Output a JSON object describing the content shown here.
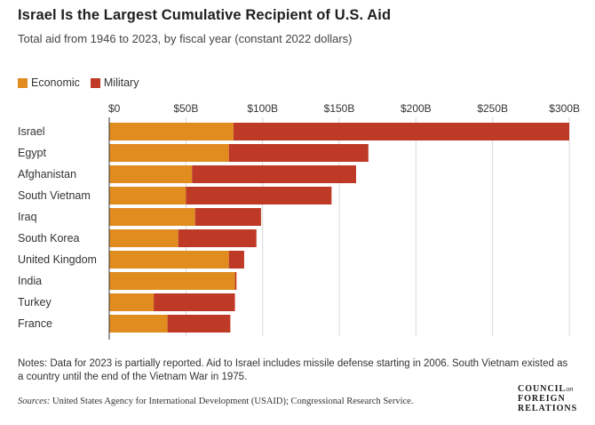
{
  "title": "Israel Is the Largest Cumulative Recipient of U.S. Aid",
  "subtitle": "Total aid from 1946 to 2023, by fiscal year (constant 2022 dollars)",
  "colors": {
    "economic": "#e08c1f",
    "military": "#bf3a26",
    "grid": "#d9d9d9",
    "axis": "#333333"
  },
  "chart_data": {
    "type": "bar",
    "orientation": "horizontal",
    "stacked": true,
    "categories": [
      "Israel",
      "Egypt",
      "Afghanistan",
      "South Vietnam",
      "Iraq",
      "South Korea",
      "United Kingdom",
      "India",
      "Turkey",
      "France"
    ],
    "series": [
      {
        "name": "Economic",
        "values": [
          81,
          78,
          54,
          50,
          56,
          45,
          78,
          82,
          29,
          38
        ]
      },
      {
        "name": "Military",
        "values": [
          219,
          91,
          107,
          95,
          43,
          51,
          10,
          1,
          53,
          41
        ]
      }
    ],
    "x_ticks": [
      "$0",
      "$50B",
      "$100B",
      "$150B",
      "$200B",
      "$250B",
      "$300B"
    ],
    "x_tick_values": [
      0,
      50,
      100,
      150,
      200,
      250,
      300
    ],
    "xlim": [
      0,
      300
    ],
    "grid": true,
    "legend_position": "top-left"
  },
  "notes": "Notes: Data for 2023 is partially reported. Aid to Israel includes missile defense starting in 2006. South Vietnam existed as a country until the end of the Vietnam War in 1975.",
  "sources_label": "Sources:",
  "sources_text": " United States Agency for International Development (USAID); Congressional Research Service.",
  "logo": {
    "line1": "COUNCIL",
    "on": "on",
    "line2": "FOREIGN",
    "line3": "RELATIONS"
  }
}
